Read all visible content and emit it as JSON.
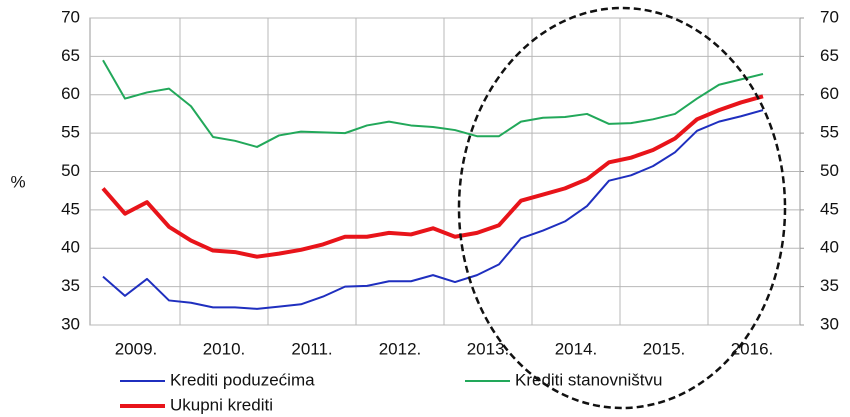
{
  "chart_data": {
    "type": "line",
    "y_label": "%",
    "categories": [
      null,
      "2009.",
      null,
      null,
      null,
      "2010.",
      null,
      null,
      null,
      "2011.",
      null,
      null,
      null,
      "2012.",
      null,
      null,
      null,
      "2013.",
      null,
      null,
      null,
      "2014.",
      null,
      null,
      null,
      "2015.",
      null,
      null,
      null,
      "2016.",
      null
    ],
    "ylim": [
      30,
      70
    ],
    "yticks": [
      30,
      35,
      40,
      45,
      50,
      55,
      60,
      65,
      70
    ],
    "y2lim": [
      30,
      70
    ],
    "y2ticks": [
      30,
      35,
      40,
      45,
      50,
      55,
      60,
      65,
      70
    ],
    "grid": true,
    "series": [
      {
        "name": "Krediti poduzećima",
        "color": "#1f2fbf",
        "width": 2,
        "values": [
          36.3,
          33.8,
          36.0,
          33.2,
          32.9,
          32.3,
          32.3,
          32.1,
          32.4,
          32.7,
          33.7,
          35.0,
          35.1,
          35.7,
          35.7,
          36.5,
          35.6,
          36.5,
          37.9,
          41.3,
          42.3,
          43.5,
          45.5,
          48.8,
          49.5,
          50.7,
          52.5,
          55.3,
          56.5,
          57.2,
          58.0
        ]
      },
      {
        "name": "Krediti stanovništvu",
        "color": "#22a85a",
        "width": 2,
        "values": [
          64.5,
          59.5,
          60.3,
          60.8,
          58.5,
          54.5,
          54.0,
          53.2,
          54.7,
          55.2,
          55.1,
          55.0,
          56.0,
          56.5,
          56.0,
          55.8,
          55.4,
          54.6,
          54.6,
          56.5,
          57.0,
          57.1,
          57.5,
          56.2,
          56.3,
          56.8,
          57.5,
          59.5,
          61.3,
          62.0,
          62.7
        ]
      },
      {
        "name": "Ukupni krediti",
        "color": "#e8141a",
        "width": 4,
        "values": [
          47.8,
          44.5,
          46.0,
          42.8,
          41.0,
          39.7,
          39.5,
          38.9,
          39.3,
          39.8,
          40.5,
          41.5,
          41.5,
          42.0,
          41.8,
          42.6,
          41.5,
          42.0,
          43.0,
          46.2,
          47.0,
          47.8,
          49.0,
          51.2,
          51.8,
          52.8,
          54.3,
          56.8,
          58.0,
          59.0,
          59.8
        ]
      }
    ]
  }
}
